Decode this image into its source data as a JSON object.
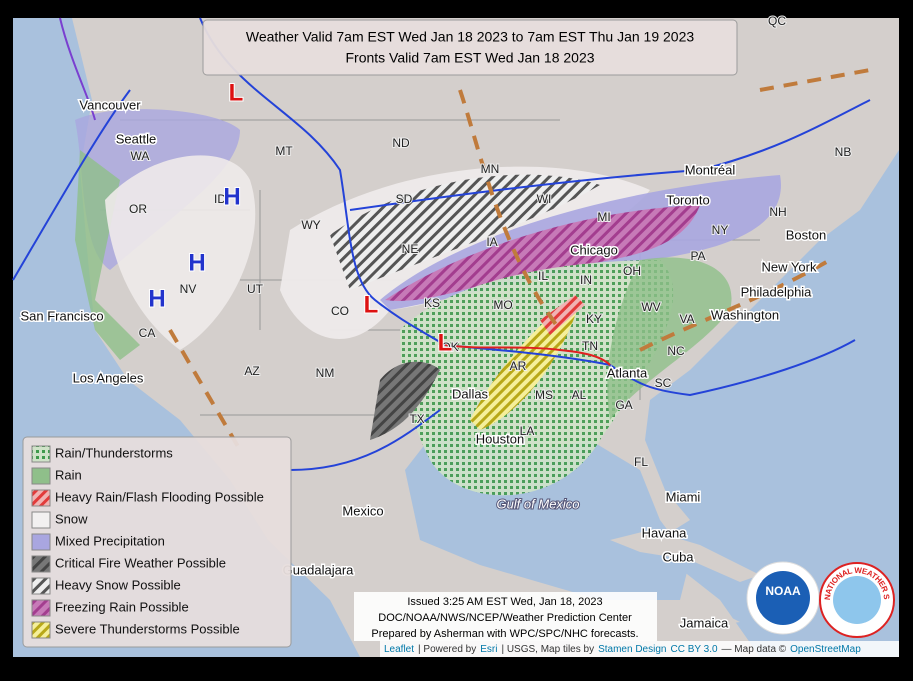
{
  "title": {
    "line1": "Weather Valid 7am EST Wed Jan 18 2023 to 7am EST Thu Jan 19 2023",
    "line2": "Fronts Valid 7am EST Wed Jan 18 2023"
  },
  "legend": [
    "Rain/Thunderstorms",
    "Rain",
    "Heavy Rain/Flash Flooding Possible",
    "Snow",
    "Mixed Precipitation",
    "Critical Fire Weather Possible",
    "Heavy Snow Possible",
    "Freezing Rain Possible",
    "Severe Thunderstorms Possible"
  ],
  "cities": [
    "Vancouver",
    "Seattle",
    "San Francisco",
    "Los Angeles",
    "Mexico",
    "Guadalajara",
    "Montréal",
    "Toronto",
    "Boston",
    "New York",
    "Philadelphia",
    "Washington",
    "Chicago",
    "Dallas",
    "Houston",
    "Atlanta",
    "Miami",
    "Havana",
    "Cuba",
    "Jamaica"
  ],
  "states": [
    "WA",
    "OR",
    "ID",
    "NV",
    "CA",
    "UT",
    "AZ",
    "MT",
    "WY",
    "CO",
    "NM",
    "ND",
    "SD",
    "NE",
    "KS",
    "OK",
    "TX",
    "MN",
    "IA",
    "MO",
    "AR",
    "LA",
    "WI",
    "IL",
    "MS",
    "AL",
    "TN",
    "KY",
    "IN",
    "OH",
    "MI",
    "GA",
    "FL",
    "SC",
    "NC",
    "VA",
    "WV",
    "PA",
    "NY",
    "NH",
    "NB",
    "QC"
  ],
  "water": [
    "Gulf of Mexico"
  ],
  "pressure_centers": [
    "H",
    "H",
    "H",
    "L",
    "L",
    "L"
  ],
  "issued": [
    "Issued 3:25 AM EST Wed, Jan 18, 2023",
    "DOC/NOAA/NWS/NCEP/Weather Prediction Center",
    "Prepared by Asherman with WPC/SPC/NHC forecasts."
  ],
  "attribution": [
    "Leaflet",
    "| Powered by",
    "Esri",
    "| USGS, Map tiles by",
    "Stamen Design",
    "CC BY 3.0",
    "— Map data ©",
    "OpenStreetMap"
  ],
  "logos": {
    "noaa": "NOAA",
    "nws": "NATIONAL WEATHER SERVICE"
  }
}
